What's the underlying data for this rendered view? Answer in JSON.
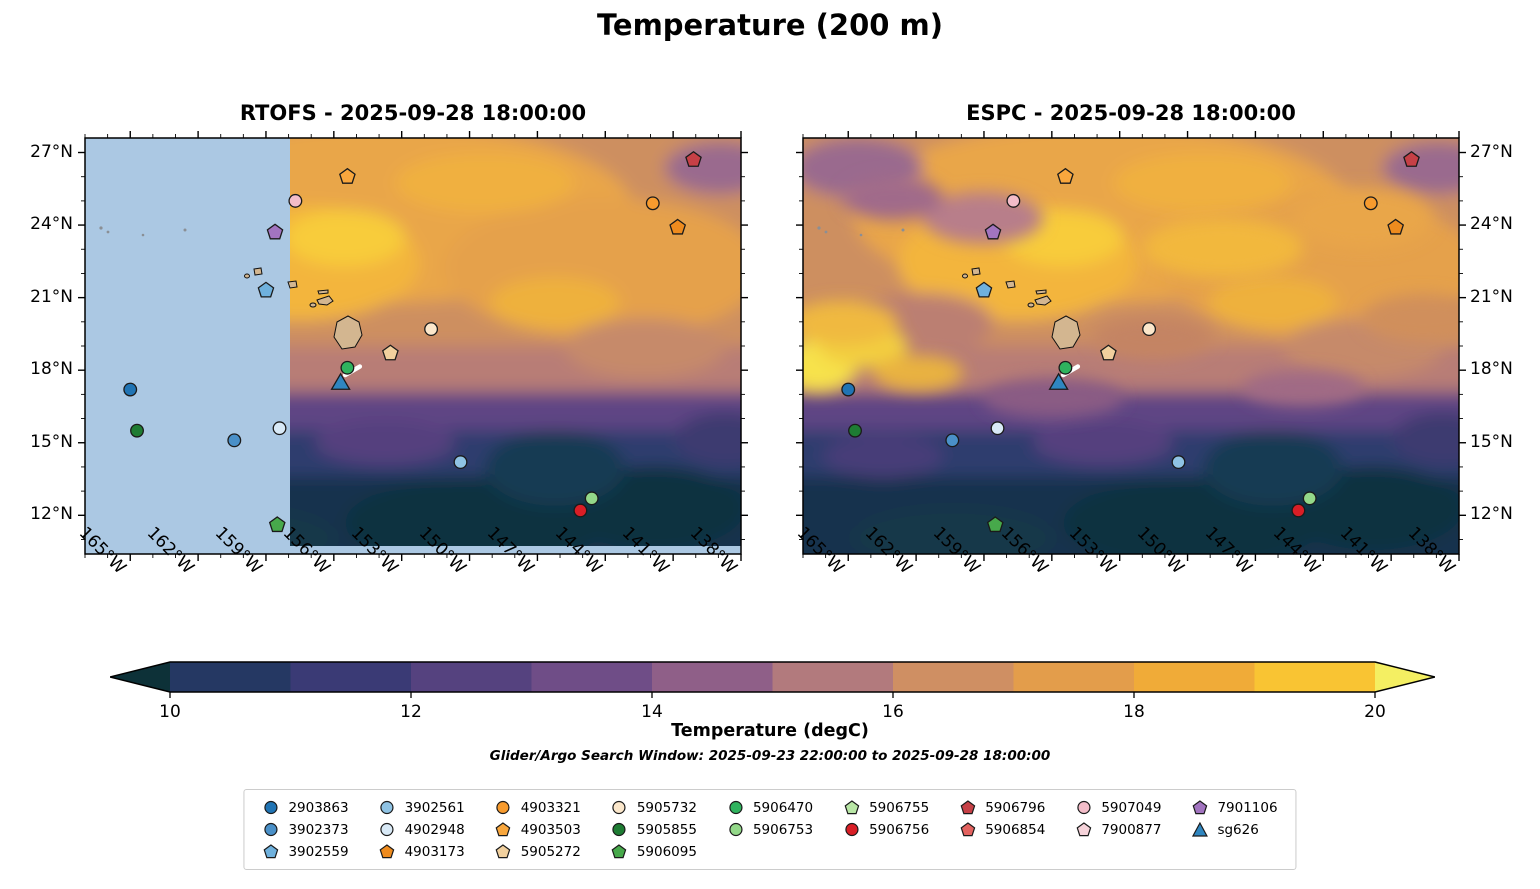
{
  "title": "Temperature (200 m)",
  "panels": [
    {
      "id": "rtofs",
      "title": "RTOFS - 2025-09-28 18:00:00"
    },
    {
      "id": "espc",
      "title": "ESPC - 2025-09-28 18:00:00"
    }
  ],
  "axes": {
    "lon_ticks": [
      {
        "value": 165,
        "label": "165°W"
      },
      {
        "value": 162,
        "label": "162°W"
      },
      {
        "value": 159,
        "label": "159°W"
      },
      {
        "value": 156,
        "label": "156°W"
      },
      {
        "value": 153,
        "label": "153°W"
      },
      {
        "value": 150,
        "label": "150°W"
      },
      {
        "value": 147,
        "label": "147°W"
      },
      {
        "value": 144,
        "label": "144°W"
      },
      {
        "value": 141,
        "label": "141°W"
      },
      {
        "value": 138,
        "label": "138°W"
      }
    ],
    "lat_ticks": [
      {
        "value": 27,
        "label": "27°N"
      },
      {
        "value": 24,
        "label": "24°N"
      },
      {
        "value": 21,
        "label": "21°N"
      },
      {
        "value": 18,
        "label": "18°N"
      },
      {
        "value": 15,
        "label": "15°N"
      },
      {
        "value": 12,
        "label": "12°N"
      }
    ]
  },
  "colorbar": {
    "label": "Temperature (degC)",
    "tick_values": [
      10,
      12,
      14,
      16,
      18,
      20
    ],
    "tick_labels": [
      "10",
      "12",
      "14",
      "16",
      "18",
      "20"
    ],
    "vmin": 10,
    "vmax": 20,
    "under_color": "#0d3138",
    "over_color": "#f4ef62",
    "band_colors": [
      "#253863",
      "#3a3a75",
      "#55427f",
      "#6f4d87",
      "#8f5f88",
      "#b27a7d",
      "#cf8f63",
      "#e39d4b",
      "#f0ab38",
      "#f9c433"
    ]
  },
  "search_window_label": "Glider/Argo Search Window: 2025-09-23 22:00:00 to 2025-09-28 18:00:00",
  "legend": {
    "columns": [
      [
        "2903863",
        "3902373",
        "3902559"
      ],
      [
        "3902561",
        "4902948",
        "4903173"
      ],
      [
        "4903321",
        "4903503",
        "5905272"
      ],
      [
        "5905732",
        "5905855",
        "5906095"
      ],
      [
        "5906470",
        "5906753"
      ],
      [
        "5906755",
        "5906756"
      ],
      [
        "5906796",
        "5906854"
      ],
      [
        "5907049",
        "7900877"
      ],
      [
        "7901106",
        "sg626"
      ]
    ],
    "entries": {
      "2903863": {
        "label": "2903863",
        "marker": "circle",
        "color": "#2074b4"
      },
      "3902373": {
        "label": "3902373",
        "marker": "circle",
        "color": "#4a90c8"
      },
      "3902559": {
        "label": "3902559",
        "marker": "pentagon",
        "color": "#6fb1dd"
      },
      "3902561": {
        "label": "3902561",
        "marker": "circle",
        "color": "#8fc3e4"
      },
      "4902948": {
        "label": "4902948",
        "marker": "circle",
        "color": "#d8e9f6"
      },
      "4903173": {
        "label": "4903173",
        "marker": "pentagon",
        "color": "#ee8b1e"
      },
      "4903321": {
        "label": "4903321",
        "marker": "circle",
        "color": "#f79b2e"
      },
      "4903503": {
        "label": "4903503",
        "marker": "pentagon",
        "color": "#f9a73d"
      },
      "5905272": {
        "label": "5905272",
        "marker": "pentagon",
        "color": "#f1d09e"
      },
      "5905732": {
        "label": "5905732",
        "marker": "circle",
        "color": "#fbe7cb"
      },
      "5905855": {
        "label": "5905855",
        "marker": "circle",
        "color": "#1e7c33"
      },
      "5906095": {
        "label": "5906095",
        "marker": "pentagon",
        "color": "#47a94b"
      },
      "5906470": {
        "label": "5906470",
        "marker": "circle",
        "color": "#2fb35e"
      },
      "5906753": {
        "label": "5906753",
        "marker": "circle",
        "color": "#93d889"
      },
      "5906755": {
        "label": "5906755",
        "marker": "pentagon",
        "color": "#b9e7a6"
      },
      "5906756": {
        "label": "5906756",
        "marker": "circle",
        "color": "#d91e26"
      },
      "5906796": {
        "label": "5906796",
        "marker": "pentagon",
        "color": "#c64046"
      },
      "5906854": {
        "label": "5906854",
        "marker": "pentagon",
        "color": "#e3625f"
      },
      "5907049": {
        "label": "5907049",
        "marker": "circle",
        "color": "#f3bdc9"
      },
      "7900877": {
        "label": "7900877",
        "marker": "pentagon",
        "color": "#f6d3da"
      },
      "7901106": {
        "label": "7901106",
        "marker": "pentagon",
        "color": "#a274c0"
      },
      "sg626": {
        "label": "sg626",
        "marker": "triangle",
        "color": "#2f86c0"
      }
    }
  },
  "chart_data": {
    "type": "heatmap",
    "title": "Temperature (200 m)",
    "variable": "Temperature",
    "units": "degC",
    "depth_m": 200,
    "panels": [
      {
        "name": "RTOFS",
        "time": "2025-09-28 18:00:00",
        "no_data_mask": "west of ~158°W and south of ~10.6°N shown as light blue"
      },
      {
        "name": "ESPC",
        "time": "2025-09-28 18:00:00"
      }
    ],
    "lon_range_degW": [
      167,
      138
    ],
    "lat_range_degN": [
      10.4,
      27.6
    ],
    "color_range_degC": [
      10,
      20
    ],
    "markers": [
      {
        "id": "2903863",
        "lon_degW": 165.0,
        "lat_degN": 17.2
      },
      {
        "id": "5905855",
        "lon_degW": 164.7,
        "lat_degN": 15.5
      },
      {
        "id": "3902373",
        "lon_degW": 160.4,
        "lat_degN": 15.1
      },
      {
        "id": "4902948",
        "lon_degW": 158.4,
        "lat_degN": 15.6
      },
      {
        "id": "3902559",
        "lon_degW": 159.0,
        "lat_degN": 21.3
      },
      {
        "id": "5907049",
        "lon_degW": 157.7,
        "lat_degN": 25.0
      },
      {
        "id": "7901106",
        "lon_degW": 158.6,
        "lat_degN": 23.7
      },
      {
        "id": "4903503",
        "lon_degW": 155.4,
        "lat_degN": 26.0
      },
      {
        "id": "5905732",
        "lon_degW": 151.7,
        "lat_degN": 19.7
      },
      {
        "id": "5905272",
        "lon_degW": 153.5,
        "lat_degN": 18.7
      },
      {
        "id": "5906470",
        "lon_degW": 155.4,
        "lat_degN": 18.1
      },
      {
        "id": "3902561",
        "lon_degW": 150.4,
        "lat_degN": 14.2
      },
      {
        "id": "5906095",
        "lon_degW": 158.5,
        "lat_degN": 11.6
      },
      {
        "id": "5906756",
        "lon_degW": 145.1,
        "lat_degN": 12.2
      },
      {
        "id": "5906753",
        "lon_degW": 144.6,
        "lat_degN": 12.7
      },
      {
        "id": "4903321",
        "lon_degW": 141.9,
        "lat_degN": 24.9
      },
      {
        "id": "4903173",
        "lon_degW": 140.8,
        "lat_degN": 23.9
      },
      {
        "id": "5906796",
        "lon_degW": 140.1,
        "lat_degN": 26.7
      },
      {
        "id": "sg626",
        "lon_degW": 155.7,
        "lat_degN": 17.5
      }
    ],
    "glider_track": {
      "id": "sg626",
      "lon_degW": [
        155.5,
        154.85
      ],
      "lat_degN": [
        17.8,
        18.15
      ],
      "color": "#ffffff"
    }
  }
}
